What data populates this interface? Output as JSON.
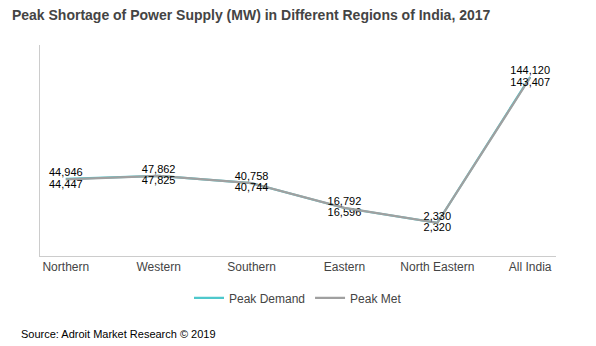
{
  "chart_data": {
    "type": "line",
    "title": "Peak Shortage of Power Supply (MW) in Different Regions of India, 2017",
    "categories": [
      "Northern",
      "Western",
      "Southern",
      "Eastern",
      "North Eastern",
      "All India"
    ],
    "series": [
      {
        "name": "Peak Demand",
        "color": "#4ec8cc",
        "values": [
          44946,
          47862,
          40758,
          16596,
          2320,
          144120
        ],
        "value_labels": [
          "44,946",
          "47,862",
          "40,758",
          "16,596",
          "2,320",
          "144,120"
        ]
      },
      {
        "name": "Peak Met",
        "color": "#a0a0a0",
        "values": [
          44447,
          47825,
          40744,
          16792,
          2330,
          143407
        ],
        "value_labels": [
          "44,447",
          "47,825",
          "40,744",
          "16,792",
          "2,330",
          "143,407"
        ]
      }
    ],
    "ylim": [
      -30000,
      175000
    ],
    "tick_labels": "x",
    "data_labels": true,
    "grid": false,
    "legend": "bottom",
    "annotations": [
      "Source: Adroit Market Research © 2019"
    ]
  }
}
